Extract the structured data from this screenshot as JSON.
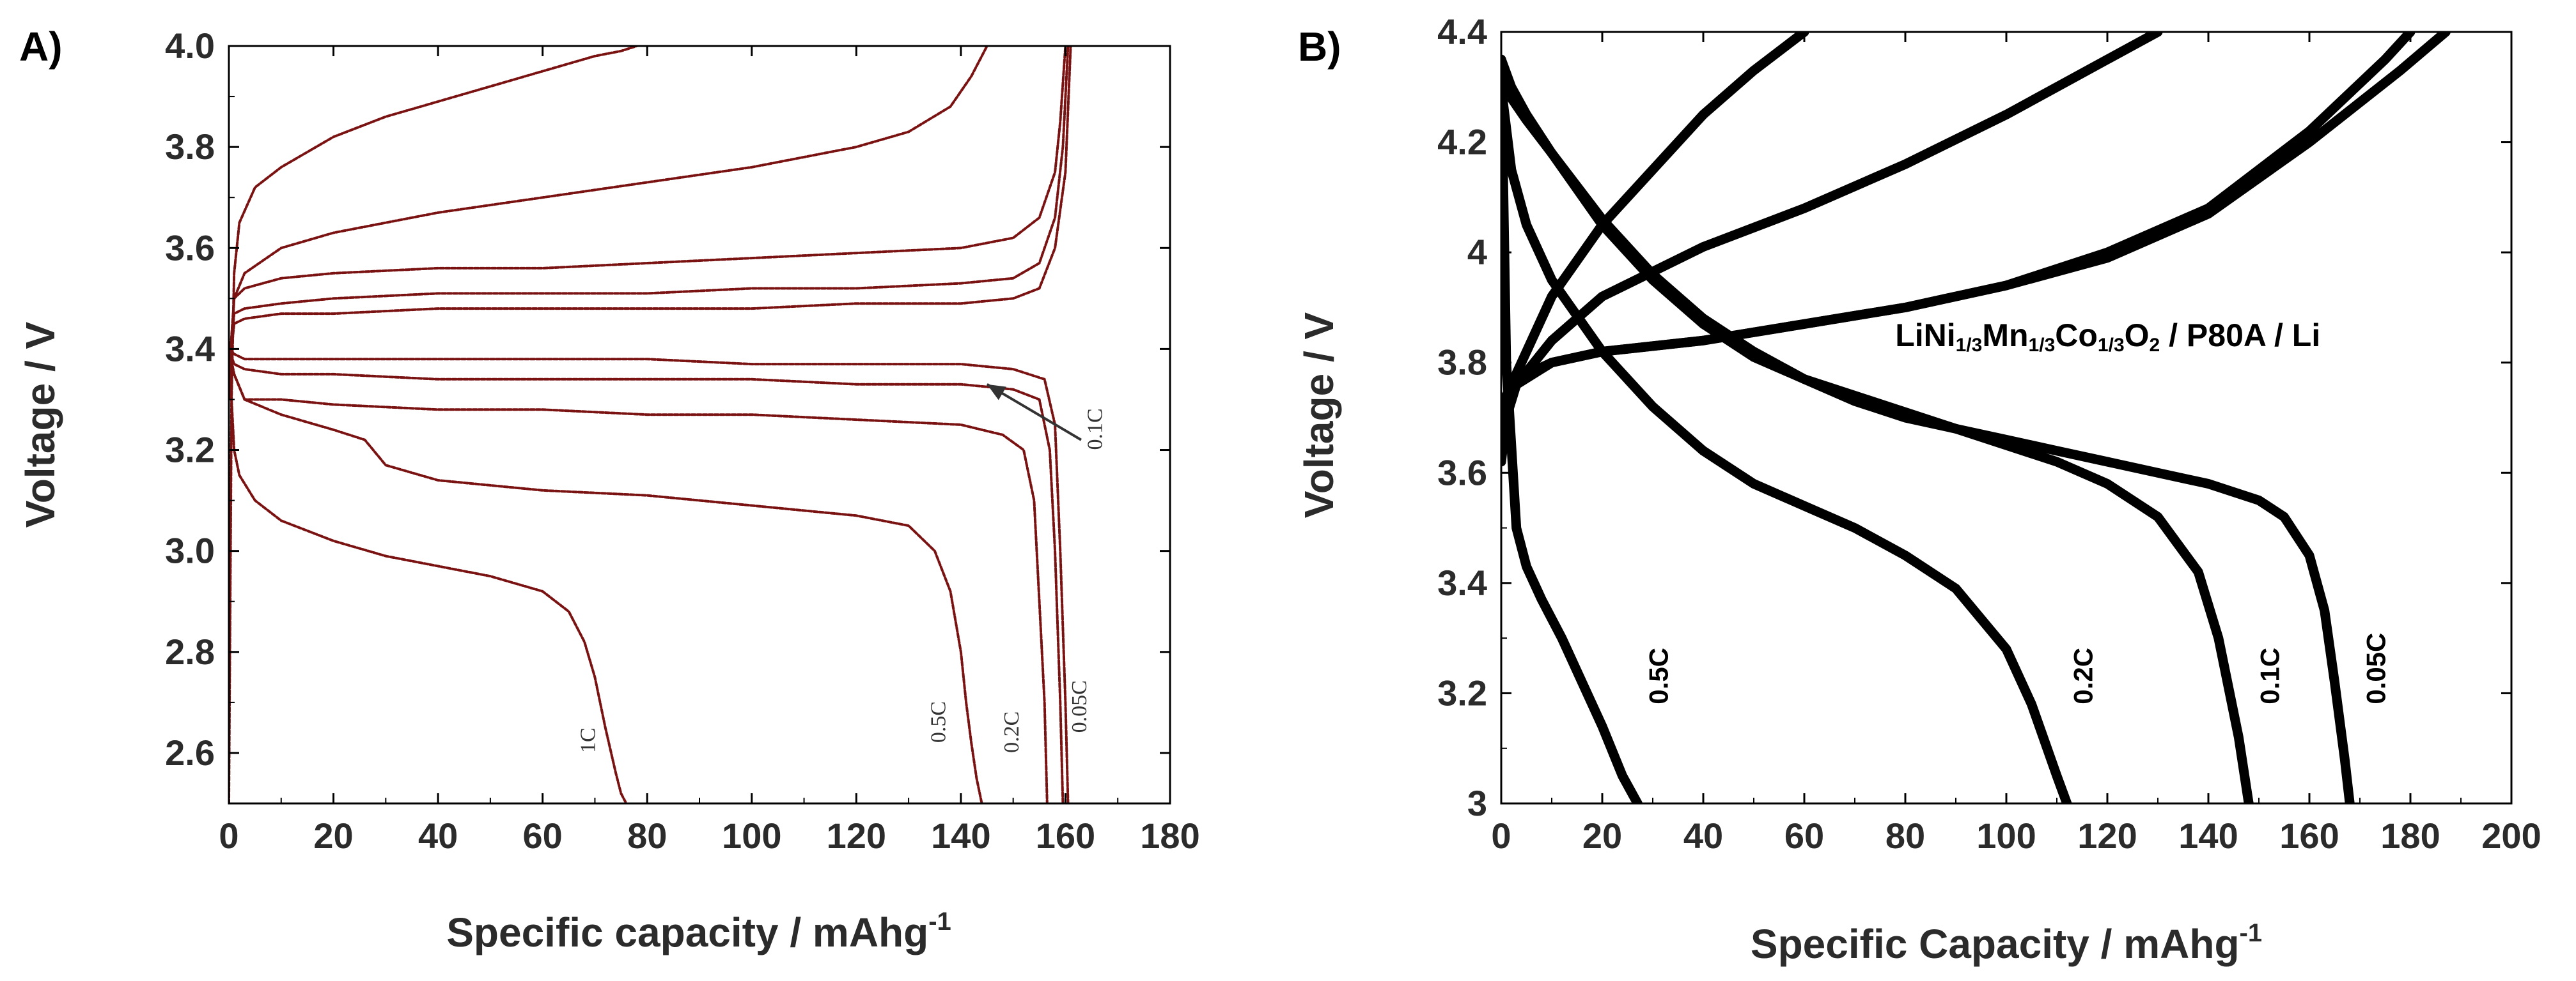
{
  "chart_data": [
    {
      "type": "line",
      "panel_label": "A)",
      "title": "",
      "xlabel": "Specific capacity / mAhg",
      "xlabel_sup": "-1",
      "ylabel": "Voltage / V",
      "xlim": [
        0,
        180
      ],
      "ylim": [
        2.5,
        4.0
      ],
      "xticks": [
        0,
        20,
        40,
        60,
        80,
        100,
        120,
        140,
        160,
        180
      ],
      "yticks": [
        2.6,
        2.8,
        3.0,
        3.2,
        3.4,
        3.6,
        3.8,
        4.0
      ],
      "xtick_labels": [
        "0",
        "20",
        "40",
        "60",
        "80",
        "100",
        "120",
        "140",
        "160",
        "180"
      ],
      "ytick_labels": [
        "2.6",
        "2.8",
        "3.0",
        "3.2",
        "3.4",
        "3.6",
        "3.8",
        "4.0"
      ],
      "color": "#7a1212",
      "series": [
        {
          "name": "1C charge",
          "x": [
            0,
            0.5,
            1,
            2,
            5,
            10,
            20,
            30,
            40,
            50,
            60,
            70,
            75,
            78
          ],
          "y": [
            2.5,
            3.3,
            3.55,
            3.65,
            3.72,
            3.76,
            3.82,
            3.86,
            3.89,
            3.92,
            3.95,
            3.98,
            3.99,
            4.0
          ]
        },
        {
          "name": "1C discharge",
          "x": [
            0,
            0.5,
            1,
            2,
            5,
            10,
            20,
            30,
            40,
            50,
            60,
            65,
            68,
            70,
            72,
            74,
            75,
            76
          ],
          "y": [
            3.4,
            3.3,
            3.2,
            3.15,
            3.1,
            3.06,
            3.02,
            2.99,
            2.97,
            2.95,
            2.92,
            2.88,
            2.82,
            2.75,
            2.65,
            2.56,
            2.52,
            2.5
          ]
        },
        {
          "name": "0.5C charge",
          "x": [
            0,
            1,
            3,
            10,
            20,
            40,
            60,
            80,
            100,
            120,
            130,
            138,
            142,
            144,
            145
          ],
          "y": [
            3.3,
            3.5,
            3.55,
            3.6,
            3.63,
            3.67,
            3.7,
            3.73,
            3.76,
            3.8,
            3.83,
            3.88,
            3.94,
            3.98,
            4.0
          ]
        },
        {
          "name": "0.5C discharge",
          "x": [
            0,
            1,
            3,
            10,
            20,
            26,
            30,
            40,
            60,
            80,
            100,
            120,
            130,
            135,
            138,
            140,
            141,
            142,
            143,
            144
          ],
          "y": [
            3.4,
            3.35,
            3.3,
            3.27,
            3.24,
            3.22,
            3.17,
            3.14,
            3.12,
            3.11,
            3.09,
            3.07,
            3.05,
            3.0,
            2.92,
            2.8,
            2.7,
            2.62,
            2.55,
            2.5
          ]
        },
        {
          "name": "0.2C charge",
          "x": [
            0,
            1,
            3,
            10,
            20,
            40,
            60,
            80,
            100,
            120,
            140,
            150,
            155,
            158,
            159,
            160
          ],
          "y": [
            3.35,
            3.5,
            3.52,
            3.54,
            3.55,
            3.56,
            3.56,
            3.57,
            3.58,
            3.59,
            3.6,
            3.62,
            3.66,
            3.75,
            3.85,
            4.0
          ]
        },
        {
          "name": "0.2C discharge",
          "x": [
            0,
            1,
            3,
            10,
            20,
            40,
            60,
            80,
            100,
            120,
            140,
            148,
            152,
            154,
            155,
            156,
            156.5
          ],
          "y": [
            3.4,
            3.35,
            3.3,
            3.3,
            3.29,
            3.28,
            3.28,
            3.27,
            3.27,
            3.26,
            3.25,
            3.23,
            3.2,
            3.1,
            2.9,
            2.7,
            2.5
          ]
        },
        {
          "name": "0.1C charge",
          "x": [
            0,
            1,
            3,
            10,
            20,
            40,
            60,
            80,
            100,
            120,
            140,
            150,
            155,
            158,
            159.5,
            160.5
          ],
          "y": [
            3.35,
            3.47,
            3.48,
            3.49,
            3.5,
            3.51,
            3.51,
            3.51,
            3.52,
            3.52,
            3.53,
            3.54,
            3.57,
            3.66,
            3.8,
            4.0
          ]
        },
        {
          "name": "0.1C discharge",
          "x": [
            0,
            1,
            3,
            10,
            20,
            40,
            60,
            80,
            100,
            120,
            140,
            150,
            155,
            157,
            158,
            159,
            159.5
          ],
          "y": [
            3.4,
            3.37,
            3.36,
            3.35,
            3.35,
            3.34,
            3.34,
            3.34,
            3.34,
            3.33,
            3.33,
            3.32,
            3.3,
            3.2,
            3.0,
            2.7,
            2.5
          ]
        },
        {
          "name": "0.05C charge",
          "x": [
            0,
            1,
            3,
            10,
            20,
            40,
            60,
            80,
            100,
            120,
            140,
            150,
            155,
            158,
            160,
            161
          ],
          "y": [
            3.35,
            3.45,
            3.46,
            3.47,
            3.47,
            3.48,
            3.48,
            3.48,
            3.48,
            3.49,
            3.49,
            3.5,
            3.52,
            3.6,
            3.75,
            4.0
          ]
        },
        {
          "name": "0.05C discharge",
          "x": [
            0,
            1,
            3,
            10,
            20,
            40,
            60,
            80,
            100,
            120,
            140,
            150,
            156,
            158,
            159,
            160,
            160.5
          ],
          "y": [
            3.4,
            3.39,
            3.38,
            3.38,
            3.38,
            3.38,
            3.38,
            3.38,
            3.37,
            3.37,
            3.37,
            3.36,
            3.34,
            3.25,
            3.0,
            2.7,
            2.5
          ]
        }
      ],
      "annotations": [
        {
          "text": "1C",
          "x": 70,
          "y": 2.6,
          "rotate": -90
        },
        {
          "text": "0.5C",
          "x": 137,
          "y": 2.62,
          "rotate": -90
        },
        {
          "text": "0.2C",
          "x": 151,
          "y": 2.6,
          "rotate": -90
        },
        {
          "text": "0.05C",
          "x": 164,
          "y": 2.64,
          "rotate": -90
        },
        {
          "text": "0.1C",
          "x": 167,
          "y": 3.2,
          "rotate": -90
        },
        {
          "type": "arrow",
          "from": [
            163,
            3.22
          ],
          "to": [
            145,
            3.33
          ]
        }
      ]
    },
    {
      "type": "line",
      "panel_label": "B)",
      "title": "",
      "xlabel": "Specific Capacity / mAhg",
      "xlabel_sup": "-1",
      "ylabel": "Voltage / V",
      "xlim": [
        0,
        200
      ],
      "ylim": [
        3.0,
        4.4
      ],
      "xticks": [
        0,
        20,
        40,
        60,
        80,
        100,
        120,
        140,
        160,
        180,
        200
      ],
      "yticks": [
        3.0,
        3.2,
        3.4,
        3.6,
        3.8,
        4.0,
        4.2,
        4.4
      ],
      "xtick_labels": [
        "0",
        "20",
        "40",
        "60",
        "80",
        "100",
        "120",
        "140",
        "160",
        "180",
        "200"
      ],
      "ytick_labels": [
        "3",
        "3.2",
        "3.4",
        "3.6",
        "3.8",
        "4",
        "4.2",
        "4.4"
      ],
      "color": "#000000",
      "cell_label": {
        "parts": [
          "LiNi",
          "1/3",
          "Mn",
          "1/3",
          "Co",
          "1/3",
          "O",
          "2",
          " / P80A  / Li"
        ],
        "x": 78,
        "y": 3.83
      },
      "series": [
        {
          "name": "0.5C charge",
          "x": [
            0,
            1,
            3,
            10,
            20,
            30,
            40,
            50,
            60
          ],
          "y": [
            3.62,
            3.7,
            3.78,
            3.92,
            4.05,
            4.15,
            4.25,
            4.33,
            4.4
          ]
        },
        {
          "name": "0.5C discharge",
          "x": [
            0,
            1,
            3,
            5,
            8,
            12,
            16,
            20,
            24,
            27
          ],
          "y": [
            4.35,
            3.8,
            3.5,
            3.43,
            3.37,
            3.3,
            3.22,
            3.14,
            3.05,
            3.0
          ]
        },
        {
          "name": "0.2C charge",
          "x": [
            0,
            1,
            3,
            10,
            20,
            40,
            60,
            80,
            100,
            120,
            130
          ],
          "y": [
            3.66,
            3.7,
            3.76,
            3.84,
            3.92,
            4.01,
            4.08,
            4.16,
            4.25,
            4.35,
            4.4
          ]
        },
        {
          "name": "0.2C discharge",
          "x": [
            0,
            2,
            5,
            10,
            20,
            30,
            40,
            50,
            60,
            70,
            80,
            90,
            100,
            105,
            110,
            112
          ],
          "y": [
            4.3,
            4.15,
            4.05,
            3.95,
            3.82,
            3.72,
            3.64,
            3.58,
            3.54,
            3.5,
            3.45,
            3.39,
            3.28,
            3.18,
            3.05,
            3.0
          ]
        },
        {
          "name": "0.1C charge",
          "x": [
            0,
            1,
            3,
            10,
            20,
            40,
            60,
            80,
            100,
            120,
            140,
            160,
            175,
            180
          ],
          "y": [
            3.7,
            3.72,
            3.76,
            3.8,
            3.82,
            3.84,
            3.87,
            3.9,
            3.94,
            4.0,
            4.08,
            4.22,
            4.35,
            4.4
          ]
        },
        {
          "name": "0.1C discharge",
          "x": [
            0,
            2,
            5,
            10,
            20,
            30,
            40,
            50,
            60,
            70,
            80,
            90,
            100,
            110,
            120,
            130,
            138,
            142,
            146,
            148
          ],
          "y": [
            4.35,
            4.3,
            4.25,
            4.18,
            4.05,
            3.95,
            3.87,
            3.81,
            3.77,
            3.74,
            3.71,
            3.68,
            3.65,
            3.62,
            3.58,
            3.52,
            3.42,
            3.3,
            3.12,
            3.0
          ]
        },
        {
          "name": "0.05C charge",
          "x": [
            0,
            1,
            3,
            10,
            20,
            40,
            60,
            80,
            100,
            120,
            140,
            160,
            178,
            187
          ],
          "y": [
            3.72,
            3.74,
            3.77,
            3.8,
            3.82,
            3.84,
            3.87,
            3.9,
            3.94,
            3.99,
            4.07,
            4.2,
            4.33,
            4.4
          ]
        },
        {
          "name": "0.05C discharge",
          "x": [
            0,
            2,
            5,
            10,
            20,
            30,
            40,
            50,
            60,
            70,
            80,
            90,
            100,
            110,
            120,
            130,
            140,
            150,
            155,
            160,
            163,
            165,
            167,
            168
          ],
          "y": [
            4.32,
            4.28,
            4.24,
            4.18,
            4.06,
            3.96,
            3.88,
            3.82,
            3.77,
            3.73,
            3.7,
            3.68,
            3.66,
            3.64,
            3.62,
            3.6,
            3.58,
            3.55,
            3.52,
            3.45,
            3.35,
            3.22,
            3.08,
            3.0
          ]
        }
      ],
      "annotations": [
        {
          "text": "0.5C",
          "x": 33,
          "y": 3.18,
          "rotate": -90
        },
        {
          "text": "0.2C",
          "x": 117,
          "y": 3.18,
          "rotate": -90
        },
        {
          "text": "0.1C",
          "x": 154,
          "y": 3.18,
          "rotate": -90
        },
        {
          "text": "0.05C",
          "x": 175,
          "y": 3.18,
          "rotate": -90
        }
      ]
    }
  ]
}
